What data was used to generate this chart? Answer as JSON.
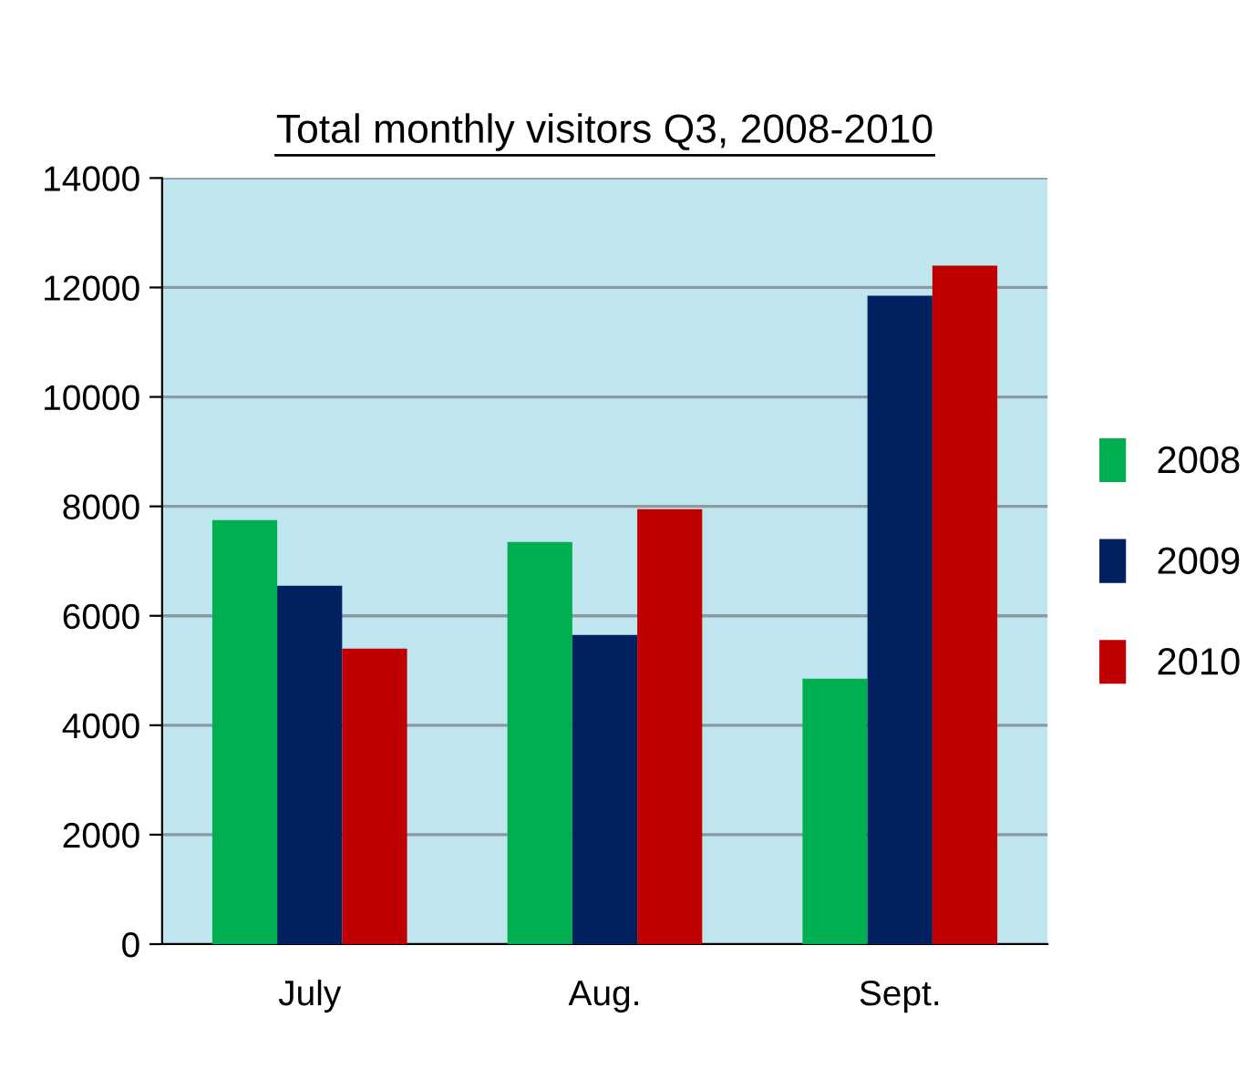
{
  "chart_data": {
    "type": "bar",
    "title": "Total monthly visitors Q3, 2008-2010",
    "categories": [
      "July",
      "Aug.",
      "Sept."
    ],
    "series": [
      {
        "name": "2008",
        "color": "#00b050",
        "values": [
          7750,
          7350,
          4850
        ]
      },
      {
        "name": "2009",
        "color": "#002060",
        "values": [
          6550,
          5650,
          11850
        ]
      },
      {
        "name": "2010",
        "color": "#c00000",
        "values": [
          5400,
          7950,
          12400
        ]
      }
    ],
    "ylim": [
      0,
      14000
    ],
    "yticks": [
      0,
      2000,
      4000,
      6000,
      8000,
      10000,
      12000,
      14000
    ],
    "grid": "y",
    "legend": "right"
  }
}
